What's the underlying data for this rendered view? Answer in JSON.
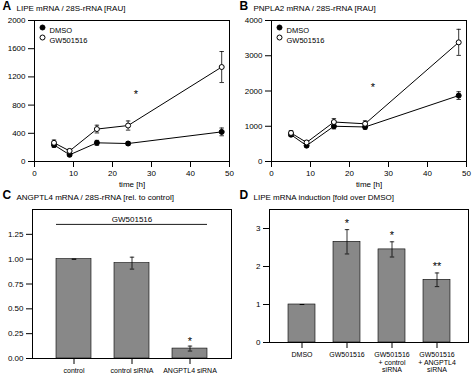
{
  "chart_data": [
    {
      "type": "line",
      "title": "A",
      "xlabel": "time [h]",
      "ylabel": "LIPE mRNA / 28S-rRNA [RAU]",
      "x": [
        5,
        9,
        16,
        24,
        48
      ],
      "xlim": [
        0,
        50
      ],
      "xticks": [
        0,
        10,
        20,
        30,
        40,
        50
      ],
      "ylim": [
        0,
        2000
      ],
      "yticks": [
        0,
        400,
        800,
        1200,
        1600,
        2000
      ],
      "series": [
        {
          "name": "DMSO",
          "color": "black",
          "marker": "circle",
          "values": [
            235,
            95,
            265,
            255,
            420
          ],
          "errors": [
            35,
            15,
            35,
            25,
            55
          ]
        },
        {
          "name": "GW501516",
          "color": "black",
          "marker": "open_circle",
          "values": [
            265,
            150,
            460,
            510,
            1340
          ],
          "errors": [
            40,
            25,
            55,
            65,
            220
          ]
        }
      ],
      "legend": "upper left",
      "grid": false,
      "annotations": [
        {
          "text": "*",
          "x": 26,
          "y": 900
        }
      ]
    },
    {
      "type": "line",
      "title": "B",
      "xlabel": "time [h]",
      "ylabel": "PNPLA2 mRNA / 28S-rRNA [RAU]",
      "x": [
        5,
        9,
        16,
        24,
        48
      ],
      "xlim": [
        0,
        50
      ],
      "xticks": [
        0,
        10,
        20,
        30,
        40,
        50
      ],
      "ylim": [
        0,
        4000
      ],
      "yticks": [
        0,
        1000,
        2000,
        3000,
        4000
      ],
      "series": [
        {
          "name": "DMSO",
          "color": "black",
          "marker": "circle",
          "values": [
            760,
            450,
            1000,
            980,
            1870
          ],
          "errors": [
            50,
            35,
            75,
            65,
            110
          ]
        },
        {
          "name": "GW501516",
          "color": "black",
          "marker": "open_circle",
          "values": [
            810,
            540,
            1120,
            1070,
            3380
          ],
          "errors": [
            65,
            45,
            95,
            85,
            370
          ]
        }
      ],
      "legend": "upper left",
      "grid": false,
      "annotations": [
        {
          "text": "*",
          "x": 26,
          "y": 2000
        }
      ]
    },
    {
      "type": "bar",
      "title": "C",
      "ylabel": "ANGPTL4 mRNA / 28S-rRNA [rel. to control]",
      "categories": [
        "control",
        "control siRNA",
        "ANGPTL4 siRNA"
      ],
      "values": [
        1.0,
        0.96,
        0.1
      ],
      "errors": [
        0.0,
        0.06,
        0.025
      ],
      "color": "#888888",
      "ylim": [
        0,
        1.5
      ],
      "yticks": [
        {
          "value": 0,
          "label": "0.00"
        },
        0.25,
        {
          "value": 0.5,
          "label": "0.50"
        },
        0.75,
        {
          "value": 1,
          "label": "1.00"
        },
        1.25
      ],
      "grid": false,
      "annotations": [
        {
          "text": "*",
          "x": "ANGPTL4 siRNA",
          "y": 0.135
        },
        {
          "type": "bracket",
          "text": "GW501516",
          "x": [
            "control",
            "ANGPTL4 siRNA"
          ],
          "y": 1.35
        }
      ]
    },
    {
      "type": "bar",
      "title": "D",
      "ylabel": "LIPE mRNA induction [fold over DMSO]",
      "categories": [
        "DMSO",
        "GW501516",
        "GW501516\n+ control\nsiRNA",
        "GW501516\n+ ANGPTL4\nsiRNA"
      ],
      "values": [
        1.0,
        2.65,
        2.45,
        1.65
      ],
      "errors": [
        0.0,
        0.32,
        0.2,
        0.18
      ],
      "color": "#888888",
      "ylim": [
        0,
        3.5
      ],
      "yticks": [
        0,
        1,
        2,
        3
      ],
      "grid": false,
      "annotations": [
        {
          "text": "*",
          "x": "GW501516",
          "y": 3.05
        },
        {
          "text": "*",
          "x": "GW501516\n+ control\nsiRNA",
          "y": 2.72
        },
        {
          "text": "**",
          "x": "GW501516\n+ ANGPTL4\nsiRNA",
          "y": 1.9
        }
      ]
    }
  ]
}
